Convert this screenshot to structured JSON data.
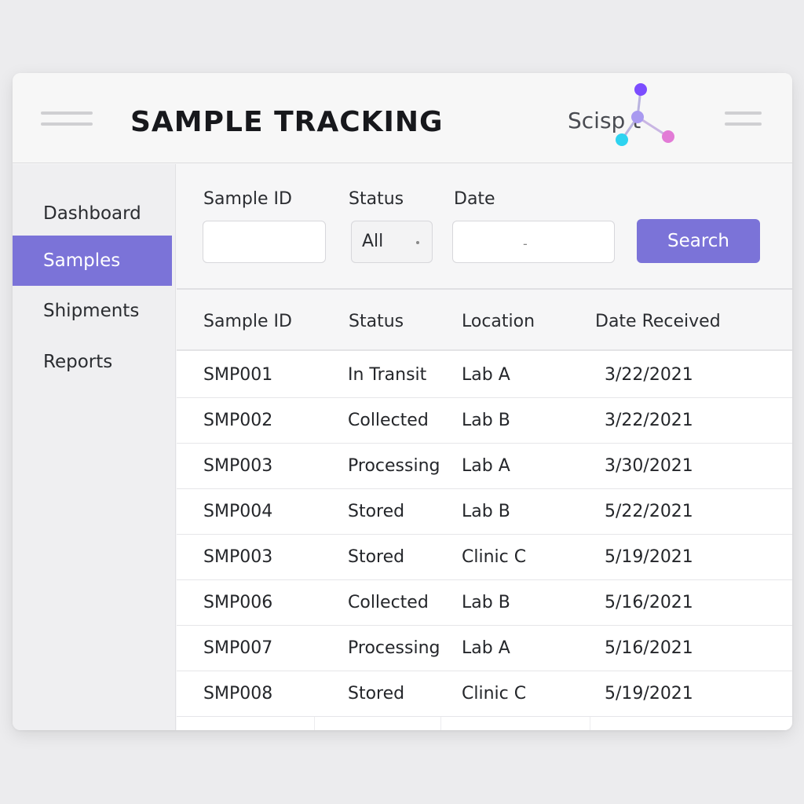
{
  "header": {
    "title": "SAMPLE TRACKING",
    "logo_text": "Scisp   t"
  },
  "sidebar": {
    "items": [
      {
        "label": "Dashboard",
        "active": false
      },
      {
        "label": "Samples",
        "active": true
      },
      {
        "label": "Shipments",
        "active": false
      },
      {
        "label": "Reports",
        "active": false
      }
    ]
  },
  "filters": {
    "sample_id_label": "Sample ID",
    "sample_id_value": "",
    "status_label": "Status",
    "status_value": "All",
    "date_label": "Date",
    "date_value": "-",
    "search_label": "Search"
  },
  "table": {
    "columns": [
      "Sample ID",
      "Status",
      "Location",
      "Date Received"
    ],
    "rows": [
      [
        "SMP001",
        "In Transit",
        "Lab A",
        "3/22/2021"
      ],
      [
        "SMP002",
        "Collected",
        "Lab B",
        "3/22/2021"
      ],
      [
        "SMP003",
        "Processing",
        "Lab A",
        "3/30/2021"
      ],
      [
        "SMP004",
        "Stored",
        "Lab B",
        "5/22/2021"
      ],
      [
        "SMP003",
        "Stored",
        "Clinic C",
        "5/19/2021"
      ],
      [
        "SMP006",
        "Collected",
        "Lab B",
        "5/16/2021"
      ],
      [
        "SMP007",
        "Processing",
        "Lab A",
        "5/16/2021"
      ],
      [
        "SMP008",
        "Stored",
        "Clinic C",
        "5/19/2021"
      ]
    ]
  },
  "colors": {
    "accent": "#7b73d8",
    "logo_node_purple": "#7c4dff",
    "logo_node_cyan": "#2ed3f0",
    "logo_node_pink": "#e27bd6"
  },
  "icons": {
    "menu_left": "hamburger-icon",
    "menu_right": "hamburger-icon",
    "status_select": "dropdown-dot-icon"
  }
}
